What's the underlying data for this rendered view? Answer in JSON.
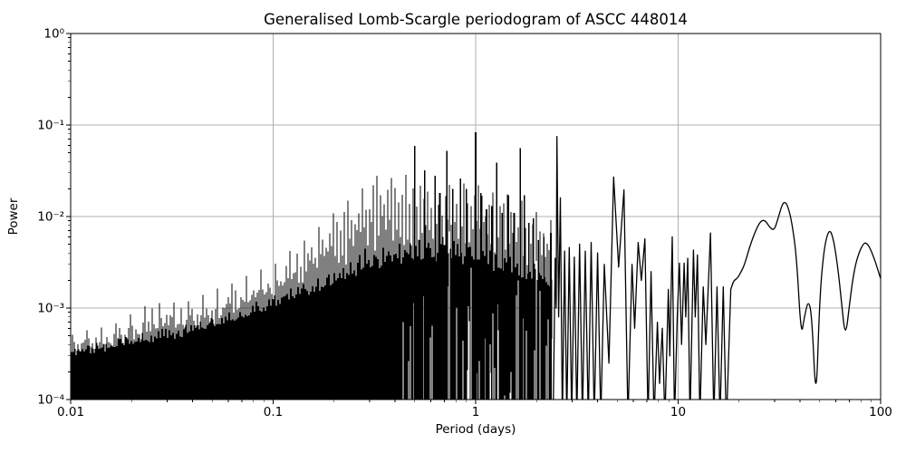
{
  "figure": {
    "background": "#ffffff"
  },
  "chart_data": {
    "type": "line",
    "title": "Generalised Lomb-Scargle periodogram of ASCC 448014",
    "xlabel": "Period (days)",
    "ylabel": "Power",
    "xscale": "log",
    "yscale": "log",
    "xlim": [
      0.01,
      100
    ],
    "ylim": [
      0.0001,
      1
    ],
    "grid": true,
    "legend": "none",
    "line_color": "#000000",
    "grid_color": "#b0b0b0",
    "x_ticks": [
      {
        "value": 0.01,
        "label": "0.01"
      },
      {
        "value": 0.1,
        "label": "0.1"
      },
      {
        "value": 1,
        "label": "1"
      },
      {
        "value": 10,
        "label": "10"
      },
      {
        "value": 100,
        "label": "100"
      }
    ],
    "y_ticks": [
      {
        "value": 1,
        "label": "10⁰"
      },
      {
        "value": 0.1,
        "label": "10⁻¹"
      },
      {
        "value": 0.01,
        "label": "10⁻²"
      },
      {
        "value": 0.001,
        "label": "10⁻³"
      },
      {
        "value": 0.0001,
        "label": "10⁻⁴"
      }
    ],
    "noise_floor": 0.0001,
    "dense_range": [
      0.01,
      2.4
    ],
    "noise_envelope": [
      [
        0.01,
        0.00055
      ],
      [
        0.016,
        0.0007
      ],
      [
        0.025,
        0.0012
      ],
      [
        0.04,
        0.0013
      ],
      [
        0.063,
        0.0019
      ],
      [
        0.1,
        0.0032
      ],
      [
        0.14,
        0.0055
      ],
      [
        0.2,
        0.011
      ],
      [
        0.25,
        0.017
      ],
      [
        0.32,
        0.028
      ],
      [
        0.355,
        0.032
      ],
      [
        0.4,
        0.026
      ],
      [
        0.45,
        0.03
      ],
      [
        0.5,
        0.024
      ],
      [
        0.63,
        0.022
      ],
      [
        0.8,
        0.024
      ],
      [
        1.0,
        0.024
      ],
      [
        1.26,
        0.018
      ],
      [
        1.6,
        0.018
      ],
      [
        2.0,
        0.012
      ],
      [
        2.4,
        0.0095
      ]
    ],
    "noise_mass_top": [
      [
        0.01,
        0.0003
      ],
      [
        0.032,
        0.00042
      ],
      [
        0.1,
        0.0009
      ],
      [
        0.2,
        0.0016
      ],
      [
        0.32,
        0.0022
      ],
      [
        0.5,
        0.0028
      ],
      [
        0.8,
        0.0028
      ],
      [
        1.26,
        0.0022
      ],
      [
        2.4,
        0.0014
      ]
    ],
    "major_peaks": [
      [
        0.5,
        0.059
      ],
      [
        0.56,
        0.032
      ],
      [
        0.63,
        0.028
      ],
      [
        0.665,
        0.018
      ],
      [
        0.72,
        0.052
      ],
      [
        0.77,
        0.02
      ],
      [
        0.84,
        0.026
      ],
      [
        0.9,
        0.02
      ],
      [
        1.0,
        0.083
      ],
      [
        1.06,
        0.018
      ],
      [
        1.13,
        0.012
      ],
      [
        1.2,
        0.013
      ],
      [
        1.27,
        0.039
      ],
      [
        1.35,
        0.011
      ],
      [
        1.45,
        0.017
      ],
      [
        1.55,
        0.011
      ],
      [
        1.66,
        0.056
      ],
      [
        1.74,
        0.017
      ],
      [
        1.83,
        0.0085
      ],
      [
        1.93,
        0.0095
      ],
      [
        2.04,
        0.0055
      ],
      [
        2.17,
        0.006
      ],
      [
        2.35,
        0.0066
      ]
    ],
    "resolved_curve": [
      [
        2.42,
        0.0001
      ],
      [
        2.47,
        0.0035
      ],
      [
        2.5,
        0.001
      ],
      [
        2.52,
        0.075
      ],
      [
        2.57,
        0.0008
      ],
      [
        2.62,
        0.016
      ],
      [
        2.68,
        6e-05
      ],
      [
        2.75,
        0.0042
      ],
      [
        2.82,
        6e-05
      ],
      [
        2.9,
        0.0046
      ],
      [
        2.98,
        6e-05
      ],
      [
        3.07,
        0.0036
      ],
      [
        3.16,
        6e-05
      ],
      [
        3.26,
        0.005
      ],
      [
        3.37,
        6e-05
      ],
      [
        3.48,
        0.0042
      ],
      [
        3.6,
        6e-05
      ],
      [
        3.72,
        0.0052
      ],
      [
        3.85,
        6e-05
      ],
      [
        4.0,
        0.004
      ],
      [
        4.15,
        6e-05
      ],
      [
        4.32,
        0.003
      ],
      [
        4.55,
        0.00025
      ],
      [
        4.8,
        0.027
      ],
      [
        5.08,
        0.0028
      ],
      [
        5.4,
        0.0195
      ],
      [
        5.65,
        6e-05
      ],
      [
        5.92,
        0.003
      ],
      [
        6.1,
        0.0006
      ],
      [
        6.35,
        0.0052
      ],
      [
        6.58,
        0.002
      ],
      [
        6.85,
        0.0057
      ],
      [
        7.1,
        6e-05
      ],
      [
        7.35,
        0.0025
      ],
      [
        7.6,
        6e-05
      ],
      [
        7.9,
        0.0007
      ],
      [
        8.1,
        0.00015
      ],
      [
        8.35,
        0.0006
      ],
      [
        8.6,
        6e-05
      ],
      [
        8.95,
        0.0016
      ],
      [
        9.1,
        0.0003
      ],
      [
        9.35,
        0.006
      ],
      [
        9.6,
        6e-05
      ],
      [
        9.9,
        0.0008
      ],
      [
        10.15,
        0.0031
      ],
      [
        10.4,
        0.0004
      ],
      [
        10.7,
        0.0031
      ],
      [
        10.9,
        0.0008
      ],
      [
        11.15,
        0.0035
      ],
      [
        11.45,
        6e-05
      ],
      [
        11.9,
        0.0043
      ],
      [
        12.15,
        0.0008
      ],
      [
        12.45,
        0.0038
      ],
      [
        12.8,
        6e-05
      ],
      [
        13.3,
        0.0017
      ],
      [
        13.7,
        0.0004
      ],
      [
        14.45,
        0.0066
      ],
      [
        15.0,
        6e-05
      ],
      [
        15.55,
        0.0017
      ],
      [
        16.1,
        6e-05
      ],
      [
        16.7,
        0.0017
      ],
      [
        17.3,
        5e-05
      ],
      [
        18.2,
        0.0016
      ],
      [
        18.8,
        0.002
      ],
      [
        19.6,
        0.0021
      ],
      [
        20.5,
        0.0025
      ],
      [
        21.3,
        0.003
      ],
      [
        22.5,
        0.0046
      ],
      [
        24.0,
        0.0068
      ],
      [
        25.2,
        0.0085
      ],
      [
        26.2,
        0.0092
      ],
      [
        27.2,
        0.0088
      ],
      [
        28.3,
        0.0076
      ],
      [
        29.8,
        0.007
      ],
      [
        31.2,
        0.0096
      ],
      [
        32.5,
        0.0132
      ],
      [
        33.5,
        0.0146
      ],
      [
        34.8,
        0.0132
      ],
      [
        36.5,
        0.0085
      ],
      [
        38.5,
        0.0035
      ],
      [
        40.5,
        0.00048
      ],
      [
        42.0,
        0.0008
      ],
      [
        44.0,
        0.00125
      ],
      [
        45.8,
        0.0008
      ],
      [
        48.0,
        8e-05
      ],
      [
        50.0,
        0.0013
      ],
      [
        52.5,
        0.0045
      ],
      [
        55.5,
        0.0073
      ],
      [
        58.0,
        0.0062
      ],
      [
        61.0,
        0.0032
      ],
      [
        64.0,
        0.0012
      ],
      [
        67.0,
        0.00045
      ],
      [
        70.5,
        0.0012
      ],
      [
        74.0,
        0.0026
      ],
      [
        78.0,
        0.004
      ],
      [
        82.0,
        0.005
      ],
      [
        84.5,
        0.0052
      ],
      [
        88.0,
        0.0047
      ],
      [
        92.0,
        0.0037
      ],
      [
        96.0,
        0.0028
      ],
      [
        100.0,
        0.0021
      ]
    ]
  }
}
